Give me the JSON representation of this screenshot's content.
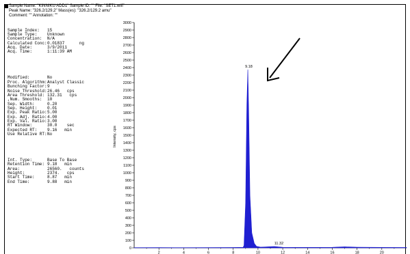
{
  "header": {
    "line1": "Sample Name: \"KINNIKU ADD1\"   Sample ID: \"\"   File: \"SET1.wiff\"",
    "line2": "Peak Name: \"326.2/129.2\"   Mass(es): \"326.2/129.2 amu\"",
    "line3": "Comment: \"\"   Annotation: \"\""
  },
  "info_block_1": [
    {
      "label": "Sample Index:",
      "value": "15"
    },
    {
      "label": "Sample Type:",
      "value": "Unknown"
    },
    {
      "label": "Concentration:",
      "value": "N/A"
    },
    {
      "label": "Calculated Conc:",
      "value": "0.01837      ng"
    },
    {
      "label": "Acq. Date:",
      "value": "3/9/2011"
    },
    {
      "label": "Acq. Time:",
      "value": "1:11:39 AM"
    }
  ],
  "info_block_2": [
    {
      "label": "Modified:",
      "value": "No"
    },
    {
      "label": "Proc. Algorithm:",
      "value": "Analyst Classic"
    },
    {
      "label": "Bunching Factor:",
      "value": "9"
    },
    {
      "label": "Noise Threshold:",
      "value": "26.46   cps"
    },
    {
      "label": "Area Threshold:",
      "value": "132.31   cps"
    },
    {
      "label": ",Num. Smooths:",
      "value": "10"
    },
    {
      "label": "Sep. Width:",
      "value": "0.20"
    },
    {
      "label": "Sep. Height:",
      "value": "0.01"
    },
    {
      "label": "Exp. Peak Ratio:",
      "value": "5.00"
    },
    {
      "label": "Exp. Adj. Ratio:",
      "value": "4.00"
    },
    {
      "label": "Exp. Val. Ratio:",
      "value": "3.00"
    },
    {
      "label": "RT Window:",
      "value": "30.0    sec"
    },
    {
      "label": "Expected RT:",
      "value": "9.16   min"
    },
    {
      "label": "Use Relative RT:",
      "value": "No"
    }
  ],
  "info_block_3": [
    {
      "label": "Int. Type:",
      "value": "Base To Base"
    },
    {
      "label": "Retention Time:",
      "value": "9.18   min"
    },
    {
      "label": "Area:",
      "value": "26560.   counts"
    },
    {
      "label": "Height:",
      "value": "2374.   cps"
    },
    {
      "label": "Start Time:",
      "value": "8.87   min"
    },
    {
      "label": "End Time:",
      "value": "9.88   min"
    }
  ],
  "chart_data": {
    "type": "area",
    "ylabel": "Intensity, cps",
    "xlabel": "",
    "xlim": [
      0,
      22
    ],
    "ylim": [
      0,
      3000
    ],
    "x_ticks": [
      2,
      4,
      6,
      8,
      10,
      12,
      14,
      16,
      18,
      20
    ],
    "y_ticks": [
      0,
      100,
      200,
      300,
      400,
      500,
      600,
      700,
      800,
      900,
      1000,
      1100,
      1200,
      1300,
      1400,
      1500,
      1600,
      1700,
      1800,
      1900,
      2000,
      2100,
      2200,
      2300,
      2400,
      2500,
      2600,
      2700,
      2800,
      2900,
      3000
    ],
    "series": [
      {
        "x": [
          0,
          2,
          4,
          6,
          8,
          8.8,
          8.87,
          9.0,
          9.1,
          9.18,
          9.25,
          9.35,
          9.5,
          9.7,
          9.88,
          10.2,
          11.32,
          12,
          14,
          16,
          17,
          18,
          20,
          22
        ],
        "y": [
          3,
          4,
          3,
          4,
          5,
          8,
          30,
          600,
          1900,
          2374,
          1800,
          700,
          200,
          60,
          20,
          10,
          18,
          8,
          6,
          8,
          14,
          9,
          6,
          5
        ]
      }
    ],
    "peaks": [
      {
        "x": 9.18,
        "label": "9.18"
      },
      {
        "x": 11.32,
        "label": "11.32"
      }
    ],
    "fill_color": "#1f1fd1",
    "arrow_annotation": true
  }
}
